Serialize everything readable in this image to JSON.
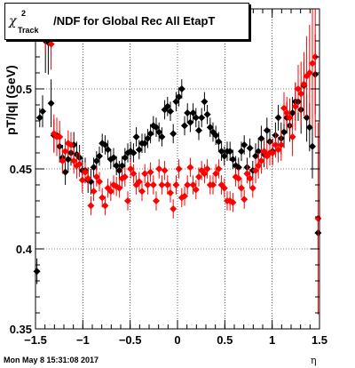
{
  "title": {
    "chi": "χ",
    "sup": "2",
    "sub": "Track",
    "rest": "/NDF for Global Rec All EtapT"
  },
  "ylabel": "pT/|q| (GeV)",
  "xlabel": "η",
  "footer": "Mon May  8 15:31:08 2017",
  "colors": {
    "series_black": "#000000",
    "series_red": "#ff0000",
    "frame": "#000000"
  },
  "chart_data": {
    "type": "scatter",
    "xlim": [
      -1.5,
      1.5
    ],
    "ylim": [
      0.35,
      0.55
    ],
    "xticks": [
      "−1.5",
      "−1",
      "−0.5",
      "0",
      "0.5",
      "1",
      "1.5"
    ],
    "xtick_values": [
      -1.5,
      -1,
      -0.5,
      0,
      0.5,
      1,
      1.5
    ],
    "yticks": [
      "0.35",
      "0.4",
      "0.45",
      "0.5"
    ],
    "ytick_values": [
      0.35,
      0.4,
      0.45,
      0.5
    ],
    "grid": true,
    "series": [
      {
        "color": "#000000",
        "points": [
          [
            -1.485,
            0.386,
            0.008
          ],
          [
            -1.455,
            0.482,
            0.006
          ],
          [
            -1.425,
            0.486,
            0.01
          ],
          [
            -1.395,
            0.53,
            0.02
          ],
          [
            -1.365,
            0.529,
            0.02
          ],
          [
            -1.335,
            0.491,
            0.015
          ],
          [
            -1.305,
            0.471,
            0.01
          ],
          [
            -1.275,
            0.471,
            0.01
          ],
          [
            -1.245,
            0.464,
            0.01
          ],
          [
            -1.215,
            0.457,
            0.008
          ],
          [
            -1.185,
            0.448,
            0.008
          ],
          [
            -1.155,
            0.456,
            0.008
          ],
          [
            -1.125,
            0.46,
            0.008
          ],
          [
            -1.095,
            0.465,
            0.008
          ],
          [
            -1.065,
            0.459,
            0.008
          ],
          [
            -1.035,
            0.457,
            0.008
          ],
          [
            -1.005,
            0.449,
            0.008
          ],
          [
            -0.975,
            0.449,
            0.008
          ],
          [
            -0.945,
            0.443,
            0.008
          ],
          [
            -0.915,
            0.442,
            0.008
          ],
          [
            -0.885,
            0.451,
            0.006
          ],
          [
            -0.855,
            0.455,
            0.006
          ],
          [
            -0.825,
            0.458,
            0.006
          ],
          [
            -0.795,
            0.466,
            0.006
          ],
          [
            -0.765,
            0.465,
            0.006
          ],
          [
            -0.735,
            0.462,
            0.006
          ],
          [
            -0.705,
            0.456,
            0.006
          ],
          [
            -0.675,
            0.457,
            0.006
          ],
          [
            -0.645,
            0.452,
            0.006
          ],
          [
            -0.615,
            0.449,
            0.006
          ],
          [
            -0.585,
            0.452,
            0.006
          ],
          [
            -0.555,
            0.457,
            0.006
          ],
          [
            -0.525,
            0.46,
            0.006
          ],
          [
            -0.495,
            0.461,
            0.006
          ],
          [
            -0.465,
            0.46,
            0.006
          ],
          [
            -0.435,
            0.47,
            0.006
          ],
          [
            -0.405,
            0.462,
            0.006
          ],
          [
            -0.375,
            0.466,
            0.006
          ],
          [
            -0.345,
            0.466,
            0.006
          ],
          [
            -0.315,
            0.469,
            0.006
          ],
          [
            -0.285,
            0.472,
            0.006
          ],
          [
            -0.255,
            0.477,
            0.006
          ],
          [
            -0.225,
            0.476,
            0.006
          ],
          [
            -0.195,
            0.473,
            0.006
          ],
          [
            -0.165,
            0.47,
            0.006
          ],
          [
            -0.135,
            0.487,
            0.006
          ],
          [
            -0.105,
            0.489,
            0.006
          ],
          [
            -0.075,
            0.486,
            0.006
          ],
          [
            -0.045,
            0.472,
            0.006
          ],
          [
            -0.015,
            0.492,
            0.006
          ],
          [
            0.015,
            0.495,
            0.006
          ],
          [
            0.045,
            0.5,
            0.006
          ],
          [
            0.075,
            0.477,
            0.006
          ],
          [
            0.105,
            0.485,
            0.006
          ],
          [
            0.135,
            0.479,
            0.006
          ],
          [
            0.165,
            0.485,
            0.006
          ],
          [
            0.195,
            0.482,
            0.006
          ],
          [
            0.225,
            0.474,
            0.006
          ],
          [
            0.255,
            0.482,
            0.006
          ],
          [
            0.285,
            0.492,
            0.006
          ],
          [
            0.315,
            0.484,
            0.006
          ],
          [
            0.345,
            0.476,
            0.006
          ],
          [
            0.375,
            0.473,
            0.006
          ],
          [
            0.405,
            0.471,
            0.006
          ],
          [
            0.435,
            0.467,
            0.006
          ],
          [
            0.465,
            0.461,
            0.006
          ],
          [
            0.495,
            0.458,
            0.006
          ],
          [
            0.525,
            0.461,
            0.006
          ],
          [
            0.555,
            0.461,
            0.006
          ],
          [
            0.585,
            0.456,
            0.006
          ],
          [
            0.615,
            0.452,
            0.006
          ],
          [
            0.645,
            0.451,
            0.006
          ],
          [
            0.675,
            0.461,
            0.006
          ],
          [
            0.705,
            0.465,
            0.006
          ],
          [
            0.735,
            0.451,
            0.006
          ],
          [
            0.765,
            0.463,
            0.006
          ],
          [
            0.795,
            0.449,
            0.006
          ],
          [
            0.825,
            0.458,
            0.008
          ],
          [
            0.855,
            0.461,
            0.008
          ],
          [
            0.885,
            0.469,
            0.008
          ],
          [
            0.915,
            0.459,
            0.008
          ],
          [
            0.945,
            0.474,
            0.008
          ],
          [
            0.975,
            0.467,
            0.008
          ],
          [
            1.005,
            0.461,
            0.008
          ],
          [
            1.035,
            0.471,
            0.008
          ],
          [
            1.065,
            0.482,
            0.008
          ],
          [
            1.095,
            0.469,
            0.01
          ],
          [
            1.125,
            0.473,
            0.01
          ],
          [
            1.155,
            0.482,
            0.01
          ],
          [
            1.185,
            0.477,
            0.01
          ],
          [
            1.215,
            0.485,
            0.01
          ],
          [
            1.245,
            0.492,
            0.012
          ],
          [
            1.275,
            0.492,
            0.012
          ],
          [
            1.305,
            0.487,
            0.015
          ],
          [
            1.335,
            0.502,
            0.015
          ],
          [
            1.365,
            0.482,
            0.015
          ],
          [
            1.395,
            0.476,
            0.015
          ],
          [
            1.425,
            0.464,
            0.02
          ],
          [
            1.455,
            0.509,
            0.025
          ],
          [
            1.485,
            0.41,
            0.01
          ]
        ]
      },
      {
        "color": "#ff0000",
        "points": [
          [
            -1.395,
            0.538,
            0.015
          ],
          [
            -1.365,
            0.549,
            0.018
          ],
          [
            -1.335,
            0.528,
            0.016
          ],
          [
            -1.305,
            0.472,
            0.012
          ],
          [
            -1.275,
            0.47,
            0.012
          ],
          [
            -1.245,
            0.47,
            0.01
          ],
          [
            -1.215,
            0.455,
            0.008
          ],
          [
            -1.185,
            0.461,
            0.008
          ],
          [
            -1.155,
            0.466,
            0.008
          ],
          [
            -1.125,
            0.465,
            0.008
          ],
          [
            -1.095,
            0.455,
            0.008
          ],
          [
            -1.065,
            0.452,
            0.008
          ],
          [
            -1.035,
            0.453,
            0.008
          ],
          [
            -1.005,
            0.443,
            0.008
          ],
          [
            -0.975,
            0.448,
            0.006
          ],
          [
            -0.945,
            0.444,
            0.006
          ],
          [
            -0.915,
            0.427,
            0.006
          ],
          [
            -0.885,
            0.436,
            0.006
          ],
          [
            -0.855,
            0.445,
            0.006
          ],
          [
            -0.825,
            0.442,
            0.006
          ],
          [
            -0.795,
            0.432,
            0.006
          ],
          [
            -0.765,
            0.427,
            0.006
          ],
          [
            -0.735,
            0.438,
            0.006
          ],
          [
            -0.705,
            0.436,
            0.006
          ],
          [
            -0.675,
            0.44,
            0.006
          ],
          [
            -0.645,
            0.439,
            0.006
          ],
          [
            -0.615,
            0.438,
            0.006
          ],
          [
            -0.585,
            0.444,
            0.006
          ],
          [
            -0.555,
            0.445,
            0.006
          ],
          [
            -0.525,
            0.43,
            0.006
          ],
          [
            -0.495,
            0.45,
            0.006
          ],
          [
            -0.465,
            0.447,
            0.006
          ],
          [
            -0.435,
            0.44,
            0.006
          ],
          [
            -0.405,
            0.442,
            0.006
          ],
          [
            -0.375,
            0.436,
            0.006
          ],
          [
            -0.345,
            0.447,
            0.006
          ],
          [
            -0.315,
            0.44,
            0.006
          ],
          [
            -0.285,
            0.448,
            0.006
          ],
          [
            -0.255,
            0.44,
            0.006
          ],
          [
            -0.225,
            0.43,
            0.006
          ],
          [
            -0.195,
            0.45,
            0.006
          ],
          [
            -0.165,
            0.44,
            0.006
          ],
          [
            -0.135,
            0.449,
            0.006
          ],
          [
            -0.105,
            0.44,
            0.006
          ],
          [
            -0.075,
            0.435,
            0.006
          ],
          [
            -0.045,
            0.425,
            0.006
          ],
          [
            -0.015,
            0.44,
            0.006
          ],
          [
            0.015,
            0.45,
            0.006
          ],
          [
            0.045,
            0.432,
            0.006
          ],
          [
            0.075,
            0.433,
            0.006
          ],
          [
            0.105,
            0.44,
            0.006
          ],
          [
            0.135,
            0.451,
            0.006
          ],
          [
            0.165,
            0.44,
            0.006
          ],
          [
            0.195,
            0.437,
            0.006
          ],
          [
            0.225,
            0.445,
            0.006
          ],
          [
            0.255,
            0.449,
            0.006
          ],
          [
            0.285,
            0.447,
            0.006
          ],
          [
            0.315,
            0.45,
            0.006
          ],
          [
            0.345,
            0.44,
            0.006
          ],
          [
            0.375,
            0.44,
            0.006
          ],
          [
            0.405,
            0.447,
            0.006
          ],
          [
            0.435,
            0.45,
            0.006
          ],
          [
            0.465,
            0.44,
            0.006
          ],
          [
            0.495,
            0.438,
            0.006
          ],
          [
            0.525,
            0.43,
            0.006
          ],
          [
            0.555,
            0.43,
            0.006
          ],
          [
            0.585,
            0.429,
            0.006
          ],
          [
            0.615,
            0.445,
            0.006
          ],
          [
            0.645,
            0.444,
            0.006
          ],
          [
            0.675,
            0.438,
            0.006
          ],
          [
            0.705,
            0.431,
            0.006
          ],
          [
            0.735,
            0.447,
            0.006
          ],
          [
            0.765,
            0.444,
            0.006
          ],
          [
            0.795,
            0.438,
            0.006
          ],
          [
            0.825,
            0.449,
            0.008
          ],
          [
            0.855,
            0.452,
            0.008
          ],
          [
            0.885,
            0.455,
            0.008
          ],
          [
            0.915,
            0.461,
            0.008
          ],
          [
            0.945,
            0.458,
            0.008
          ],
          [
            0.975,
            0.46,
            0.008
          ],
          [
            1.005,
            0.46,
            0.008
          ],
          [
            1.035,
            0.465,
            0.008
          ],
          [
            1.065,
            0.462,
            0.008
          ],
          [
            1.095,
            0.465,
            0.01
          ],
          [
            1.125,
            0.488,
            0.01
          ],
          [
            1.155,
            0.485,
            0.01
          ],
          [
            1.185,
            0.482,
            0.012
          ],
          [
            1.215,
            0.47,
            0.012
          ],
          [
            1.245,
            0.489,
            0.015
          ],
          [
            1.275,
            0.5,
            0.015
          ],
          [
            1.305,
            0.497,
            0.02
          ],
          [
            1.335,
            0.503,
            0.02
          ],
          [
            1.365,
            0.508,
            0.025
          ],
          [
            1.395,
            0.51,
            0.03
          ],
          [
            1.425,
            0.516,
            0.04
          ],
          [
            1.455,
            0.52,
            0.05
          ],
          [
            1.485,
            0.419,
            0.06
          ]
        ]
      }
    ]
  }
}
